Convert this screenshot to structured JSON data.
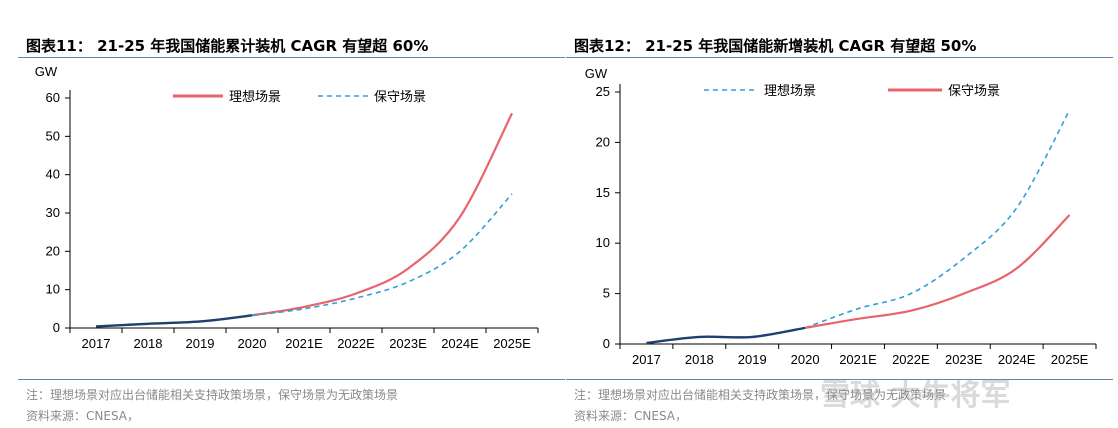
{
  "charts": [
    {
      "title": "图表11： 21-25 年我国储能累计装机 CAGR 有望超 60%",
      "note": "注：理想场景对应出台储能相关支持政策场景，保守场景为无政策场景",
      "source": "资料来源：CNESA，",
      "chart_data": {
        "type": "line",
        "unit": "GW",
        "categories": [
          "2017",
          "2018",
          "2019",
          "2020",
          "2021E",
          "2022E",
          "2023E",
          "2024E",
          "2025E"
        ],
        "ylim": [
          0,
          60
        ],
        "yticks": [
          0,
          10,
          20,
          30,
          40,
          50,
          60
        ],
        "legend_position": "top",
        "historical": {
          "values": [
            0.4,
            1.1,
            1.7,
            3.3
          ],
          "color": "#1f3f6e"
        },
        "series": [
          {
            "name": "理想场景",
            "values": [
              null,
              null,
              null,
              3.3,
              5.5,
              9.0,
              15.5,
              29.0,
              56.0
            ],
            "color": "#e8636b",
            "style": "solid"
          },
          {
            "name": "保守场景",
            "values": [
              null,
              null,
              null,
              3.3,
              5.0,
              7.8,
              12.0,
              20.0,
              35.0
            ],
            "color": "#2f9fd8",
            "style": "dashed"
          }
        ]
      }
    },
    {
      "title": "图表12： 21-25 年我国储能新增装机 CAGR 有望超 50%",
      "note": "注：理想场景对应出台储能相关支持政策场景，保守场景为无政策场景",
      "source": "资料来源：CNESA，",
      "chart_data": {
        "type": "line",
        "unit": "GW",
        "categories": [
          "2017",
          "2018",
          "2019",
          "2020",
          "2021E",
          "2022E",
          "2023E",
          "2024E",
          "2025E"
        ],
        "ylim": [
          0,
          25
        ],
        "yticks": [
          0,
          5,
          10,
          15,
          20,
          25
        ],
        "legend_position": "top",
        "historical": {
          "values": [
            0.1,
            0.7,
            0.7,
            1.6
          ],
          "color": "#1f3f6e"
        },
        "series": [
          {
            "name": "理想场景",
            "values": [
              null,
              null,
              null,
              1.6,
              3.5,
              5.0,
              8.5,
              13.5,
              23.2
            ],
            "color": "#2f9fd8",
            "style": "dashed"
          },
          {
            "name": "保守场景",
            "values": [
              null,
              null,
              null,
              1.6,
              2.5,
              3.3,
              5.0,
              7.5,
              12.8
            ],
            "color": "#e8636b",
            "style": "solid"
          }
        ]
      }
    }
  ]
}
